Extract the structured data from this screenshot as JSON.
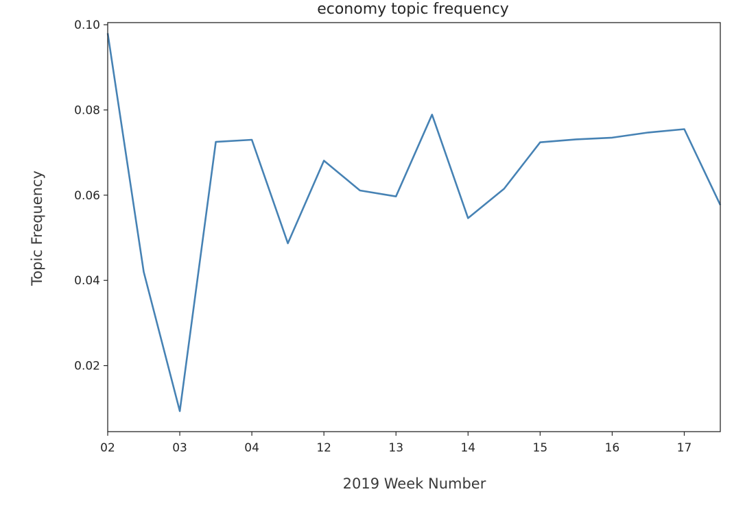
{
  "chart_data": {
    "type": "line",
    "title": "economy topic frequency",
    "xlabel": "2019 Week Number",
    "ylabel": "Topic Frequency",
    "x_tick_labels": [
      "02",
      "03",
      "04",
      "12",
      "13",
      "14",
      "15",
      "16",
      "17"
    ],
    "y_ticks": [
      0.02,
      0.04,
      0.06,
      0.08,
      0.1
    ],
    "y_tick_labels": [
      "0.02",
      "0.04",
      "0.06",
      "0.08",
      "0.10"
    ],
    "xlim": [
      0,
      8.5
    ],
    "ylim": [
      0.0045,
      0.1005
    ],
    "grid": false,
    "series": [
      {
        "color": "#4682b4",
        "x": [
          0,
          0.5,
          1,
          1.5,
          2,
          2.5,
          3,
          3.5,
          4,
          4.5,
          5,
          5.5,
          6,
          6.5,
          7,
          7.5,
          8,
          8.5
        ],
        "y": [
          0.098,
          0.042,
          0.0093,
          0.0725,
          0.073,
          0.0487,
          0.0681,
          0.0611,
          0.0597,
          0.0789,
          0.0546,
          0.0615,
          0.0724,
          0.0731,
          0.0735,
          0.0747,
          0.0755,
          0.0577
        ]
      }
    ]
  }
}
